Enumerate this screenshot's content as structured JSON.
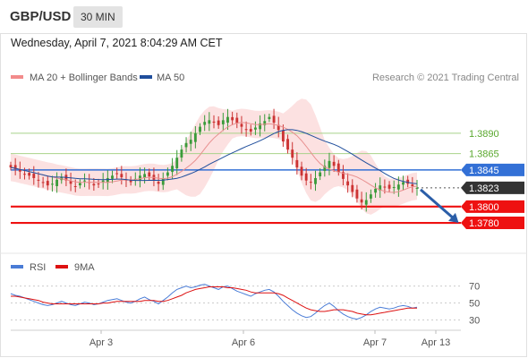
{
  "header": {
    "pair": "GBP/USD",
    "timeframe": "30 MIN"
  },
  "datetime": "Wednesday, April 7, 2021 8:04:29 AM CET",
  "legend": {
    "bollinger": {
      "label": "MA 20 + Bollinger Bands",
      "color": "#f28b8b"
    },
    "ma50": {
      "label": "MA 50",
      "color": "#1f4e9c"
    }
  },
  "credit": "Research © 2021 Trading Central",
  "colors": {
    "up": "#3a9b3a",
    "down": "#cc3333",
    "ma50": "#1f4e9c",
    "ma20": "#e89090",
    "band": "#fcdcdc",
    "support": "#ee1111",
    "pivot": "#3370d6",
    "resistance": "#a8d28a",
    "last": "#333333",
    "arrow": "#2b5ea8",
    "rsi": "#4a7cd6",
    "rsi_ma": "#dd1111"
  },
  "chart_data": [
    {
      "type": "line",
      "title": "GBP/USD 30 MIN",
      "ylim": [
        1.3746,
        1.3947
      ],
      "x_ticks": [
        "Apr 3",
        "Apr 6",
        "Apr 7",
        "Apr 13"
      ],
      "series": [
        {
          "name": "MA 20 + Bollinger Bands"
        },
        {
          "name": "MA 50"
        }
      ],
      "close_path": [
        1.3848,
        1.3846,
        1.3843,
        1.384,
        1.3838,
        1.3835,
        1.3832,
        1.3829,
        1.3826,
        1.3828,
        1.3833,
        1.3836,
        1.3832,
        1.3828,
        1.3825,
        1.3829,
        1.3832,
        1.383,
        1.3826,
        1.3828,
        1.3832,
        1.3835,
        1.3838,
        1.384,
        1.3836,
        1.3832,
        1.383,
        1.3834,
        1.3838,
        1.384,
        1.3837,
        1.3833,
        1.3828,
        1.3835,
        1.3842,
        1.385,
        1.386,
        1.387,
        1.3878,
        1.3882,
        1.389,
        1.3898,
        1.3904,
        1.3906,
        1.3903,
        1.39,
        1.3906,
        1.391,
        1.3906,
        1.3902,
        1.3898,
        1.3894,
        1.3892,
        1.3897,
        1.3902,
        1.3905,
        1.391,
        1.3903,
        1.3894,
        1.388,
        1.387,
        1.386,
        1.3848,
        1.3838,
        1.3832,
        1.383,
        1.3835,
        1.3842,
        1.385,
        1.3856,
        1.385,
        1.3842,
        1.3834,
        1.3826,
        1.3818,
        1.381,
        1.3805,
        1.3808,
        1.3815,
        1.3822,
        1.3826,
        1.3824,
        1.3822,
        1.3824,
        1.3827,
        1.383,
        1.3828,
        1.3825,
        1.3823
      ],
      "levels": [
        {
          "label": "1.3890",
          "value": 1.389,
          "kind": "resistance"
        },
        {
          "label": "1.3865",
          "value": 1.3865,
          "kind": "resistance"
        },
        {
          "label": "1.3845",
          "value": 1.3845,
          "kind": "pivot"
        },
        {
          "label": "1.3823",
          "value": 1.3823,
          "kind": "last"
        },
        {
          "label": "1.3800",
          "value": 1.38,
          "kind": "support"
        },
        {
          "label": "1.3780",
          "value": 1.378,
          "kind": "support"
        }
      ],
      "forecast_arrow": {
        "from": 1.3823,
        "to": 1.378
      }
    },
    {
      "type": "line",
      "title": "RSI",
      "series": [
        {
          "name": "RSI"
        },
        {
          "name": "9MA"
        }
      ],
      "y_ticks": [
        70,
        50,
        30
      ],
      "ylim": [
        20,
        78
      ],
      "rsi": [
        61,
        59,
        58,
        56,
        54,
        52,
        50,
        48,
        47,
        48,
        50,
        52,
        50,
        48,
        47,
        49,
        51,
        50,
        48,
        49,
        51,
        53,
        54,
        55,
        53,
        51,
        50,
        52,
        55,
        57,
        54,
        52,
        49,
        53,
        57,
        62,
        66,
        68,
        70,
        68,
        69,
        71,
        72,
        70,
        68,
        66,
        69,
        70,
        67,
        64,
        62,
        60,
        58,
        61,
        63,
        65,
        66,
        63,
        58,
        52,
        47,
        42,
        38,
        35,
        33,
        34,
        38,
        43,
        47,
        50,
        46,
        41,
        37,
        34,
        32,
        31,
        33,
        36,
        40,
        43,
        45,
        44,
        43,
        44,
        46,
        47,
        46,
        44,
        45
      ],
      "rsi_ma": [
        58,
        58,
        57,
        56,
        55,
        54,
        53,
        51,
        50,
        49,
        49,
        49,
        49,
        49,
        49,
        49,
        49,
        49,
        49,
        49,
        50,
        50,
        51,
        52,
        52,
        52,
        52,
        52,
        52,
        53,
        53,
        53,
        52,
        52,
        53,
        55,
        57,
        59,
        62,
        64,
        66,
        67,
        68,
        69,
        69,
        69,
        69,
        68,
        68,
        67,
        66,
        65,
        63,
        62,
        62,
        62,
        62,
        62,
        61,
        59,
        56,
        53,
        50,
        47,
        44,
        42,
        41,
        40,
        40,
        41,
        42,
        42,
        42,
        41,
        40,
        38,
        37,
        36,
        36,
        37,
        38,
        39,
        40,
        41,
        42,
        43,
        44,
        44,
        44
      ]
    }
  ]
}
